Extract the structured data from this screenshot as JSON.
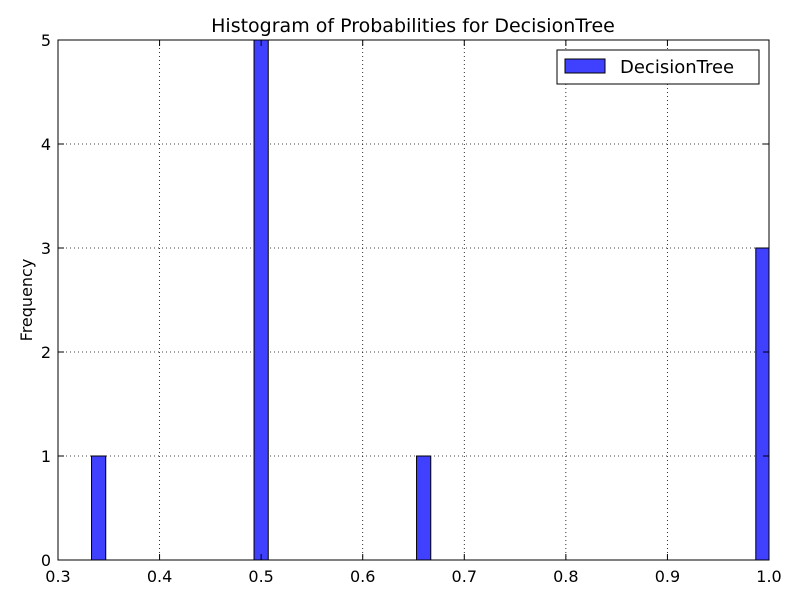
{
  "chart_data": {
    "type": "bar",
    "title": "Histogram of Probabilities for DecisionTree",
    "xlabel": "",
    "ylabel": "Frequency",
    "xlim": [
      0.3,
      1.0
    ],
    "ylim": [
      0,
      5
    ],
    "bin_width": 0.01333,
    "xticks": [
      "0.3",
      "0.4",
      "0.5",
      "0.6",
      "0.7",
      "0.8",
      "0.9",
      "1.0"
    ],
    "yticks": [
      "0",
      "1",
      "2",
      "3",
      "4",
      "5"
    ],
    "grid": true,
    "legend_position": "top-right",
    "series": [
      {
        "name": "DecisionTree",
        "color": "#4040ff",
        "bins": [
          {
            "x_start": 0.333,
            "x_end": 0.347,
            "count": 1
          },
          {
            "x_start": 0.493,
            "x_end": 0.507,
            "count": 5
          },
          {
            "x_start": 0.653,
            "x_end": 0.667,
            "count": 1
          },
          {
            "x_start": 0.987,
            "x_end": 1.0,
            "count": 3
          }
        ]
      }
    ]
  }
}
